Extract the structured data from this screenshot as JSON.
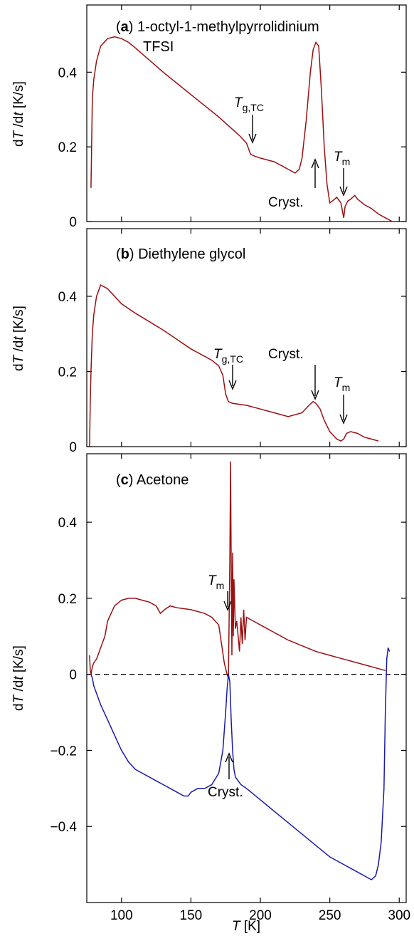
{
  "chart_data": [
    {
      "type": "line",
      "panel_label_letter": "a",
      "panel_title_line1": "1-octyl-1-methylpyrrolidinium",
      "panel_title_line2": "TFSI",
      "xlabel": "T [K]",
      "ylabel": "dT/dt [K/s]",
      "xlim": [
        75,
        305
      ],
      "ylim": [
        0,
        0.58
      ],
      "yticks": [
        0,
        0.2,
        0.4
      ],
      "ytick_labels": [
        "0",
        "0.2",
        "0.4"
      ],
      "series": [
        {
          "color": "#9b1010",
          "x": [
            78,
            78.5,
            79,
            80,
            82,
            85,
            90,
            95,
            100,
            105,
            110,
            130,
            150,
            170,
            185,
            190,
            193,
            196,
            200,
            210,
            220,
            225,
            228,
            230,
            233,
            236,
            238,
            240,
            242,
            244,
            246,
            248,
            250,
            252,
            255,
            258,
            260,
            261,
            263,
            265,
            268,
            270,
            275,
            280,
            285,
            290,
            295
          ],
          "y": [
            0.09,
            0.2,
            0.33,
            0.38,
            0.43,
            0.47,
            0.49,
            0.495,
            0.49,
            0.48,
            0.465,
            0.4,
            0.34,
            0.28,
            0.23,
            0.21,
            0.18,
            0.175,
            0.17,
            0.16,
            0.14,
            0.13,
            0.14,
            0.17,
            0.27,
            0.4,
            0.46,
            0.48,
            0.47,
            0.35,
            0.2,
            0.1,
            0.05,
            0.055,
            0.065,
            0.05,
            0.01,
            0.04,
            0.055,
            0.06,
            0.07,
            0.06,
            0.045,
            0.035,
            0.02,
            0.01,
            0.0
          ]
        }
      ],
      "annotations": [
        {
          "text_main": "T",
          "text_sub": "g,TC",
          "x": 194,
          "y": 0.18
        },
        {
          "text": "Cryst.",
          "x": 240,
          "y": 0.16
        },
        {
          "text_main": "T",
          "text_sub": "m",
          "x": 260,
          "y": 0.05
        }
      ]
    },
    {
      "type": "line",
      "panel_label_letter": "b",
      "panel_title_line1": "Diethylene glycol",
      "xlabel": "T [K]",
      "ylabel": "dT/dt [K/s]",
      "xlim": [
        75,
        305
      ],
      "ylim": [
        0,
        0.58
      ],
      "yticks": [
        0,
        0.2,
        0.4
      ],
      "ytick_labels": [
        "0",
        "0.2",
        "0.4"
      ],
      "series": [
        {
          "color": "#9b1010",
          "x": [
            77,
            77.5,
            78,
            79,
            80,
            82,
            85,
            90,
            100,
            110,
            130,
            150,
            165,
            170,
            173,
            175,
            177,
            180,
            190,
            200,
            210,
            220,
            230,
            235,
            238,
            240,
            243,
            246,
            250,
            255,
            258,
            260,
            262,
            265,
            270,
            275,
            280,
            285
          ],
          "y": [
            0.0,
            0.12,
            0.2,
            0.3,
            0.35,
            0.4,
            0.43,
            0.42,
            0.38,
            0.355,
            0.31,
            0.26,
            0.23,
            0.215,
            0.19,
            0.14,
            0.12,
            0.115,
            0.11,
            0.1,
            0.09,
            0.08,
            0.09,
            0.11,
            0.12,
            0.115,
            0.1,
            0.07,
            0.04,
            0.02,
            0.015,
            0.02,
            0.035,
            0.04,
            0.035,
            0.025,
            0.02,
            0.015
          ]
        }
      ],
      "annotations": [
        {
          "text_main": "T",
          "text_sub": "g,TC",
          "x": 177,
          "y": 0.15
        },
        {
          "text": "Cryst.",
          "x": 240,
          "y": 0.12
        },
        {
          "text_main": "T",
          "text_sub": "m",
          "x": 260,
          "y": 0.03
        }
      ]
    },
    {
      "type": "line",
      "panel_label_letter": "c",
      "panel_title_line1": "Acetone",
      "xlabel": "T [K]",
      "ylabel": "dT/dt [K/s]",
      "xlim": [
        75,
        305
      ],
      "ylim": [
        -0.6,
        0.58
      ],
      "xticks": [
        100,
        150,
        200,
        250,
        300
      ],
      "xtick_labels": [
        "100",
        "150",
        "200",
        "250",
        "300"
      ],
      "yticks": [
        -0.4,
        -0.2,
        0,
        0.2,
        0.4
      ],
      "ytick_labels": [
        "−0.4",
        "−0.2",
        "0",
        "0.2",
        "0.4"
      ],
      "series": [
        {
          "color": "#9b1010",
          "x": [
            77,
            77.5,
            78,
            79,
            80,
            82,
            84,
            86,
            88,
            90,
            95,
            100,
            105,
            110,
            115,
            120,
            125,
            128,
            131,
            135,
            140,
            150,
            160,
            165,
            170,
            172,
            174,
            176,
            177,
            178,
            178.5,
            179,
            179.5,
            180,
            180.5,
            181,
            182,
            183,
            184,
            185,
            186,
            187,
            188,
            189,
            190,
            195,
            200,
            210,
            220,
            230,
            240,
            250,
            260,
            270,
            280,
            285,
            290
          ],
          "y": [
            0.05,
            0.01,
            0.0,
            0.02,
            0.03,
            0.04,
            0.06,
            0.08,
            0.1,
            0.14,
            0.18,
            0.195,
            0.2,
            0.2,
            0.195,
            0.19,
            0.18,
            0.16,
            0.17,
            0.18,
            0.175,
            0.17,
            0.16,
            0.15,
            0.13,
            0.08,
            0.03,
            0.0,
            -0.01,
            0.3,
            0.56,
            0.3,
            0.05,
            0.32,
            0.1,
            0.25,
            0.12,
            0.14,
            0.1,
            0.06,
            0.15,
            0.08,
            0.17,
            0.09,
            0.15,
            0.14,
            0.13,
            0.11,
            0.09,
            0.075,
            0.06,
            0.05,
            0.04,
            0.03,
            0.02,
            0.015,
            0.01
          ]
        },
        {
          "color": "#1a1aad",
          "x": [
            78,
            79,
            80,
            82,
            85,
            90,
            95,
            100,
            105,
            110,
            115,
            120,
            125,
            130,
            135,
            140,
            145,
            148,
            150,
            155,
            160,
            165,
            170,
            173,
            175,
            176,
            177,
            178,
            179,
            180,
            181,
            182,
            184,
            186,
            190,
            200,
            210,
            220,
            230,
            240,
            250,
            260,
            270,
            275,
            280,
            283,
            285,
            287,
            289,
            290,
            291,
            292,
            293
          ],
          "y": [
            0.0,
            -0.01,
            -0.03,
            -0.05,
            -0.08,
            -0.12,
            -0.16,
            -0.2,
            -0.23,
            -0.25,
            -0.26,
            -0.27,
            -0.28,
            -0.29,
            -0.3,
            -0.31,
            -0.32,
            -0.32,
            -0.31,
            -0.3,
            -0.3,
            -0.29,
            -0.26,
            -0.2,
            -0.1,
            -0.04,
            0.0,
            -0.02,
            -0.12,
            -0.2,
            -0.25,
            -0.27,
            -0.28,
            -0.29,
            -0.3,
            -0.33,
            -0.36,
            -0.39,
            -0.42,
            -0.45,
            -0.48,
            -0.5,
            -0.52,
            -0.53,
            -0.54,
            -0.53,
            -0.5,
            -0.44,
            -0.3,
            -0.1,
            0.04,
            0.07,
            0.06
          ]
        }
      ],
      "zero_line": "dashed",
      "annotations": [
        {
          "text_main": "T",
          "text_sub": "m",
          "x": 176,
          "y": -0.01
        },
        {
          "text": "Cryst.",
          "x": 177,
          "y": -0.24
        }
      ]
    }
  ]
}
